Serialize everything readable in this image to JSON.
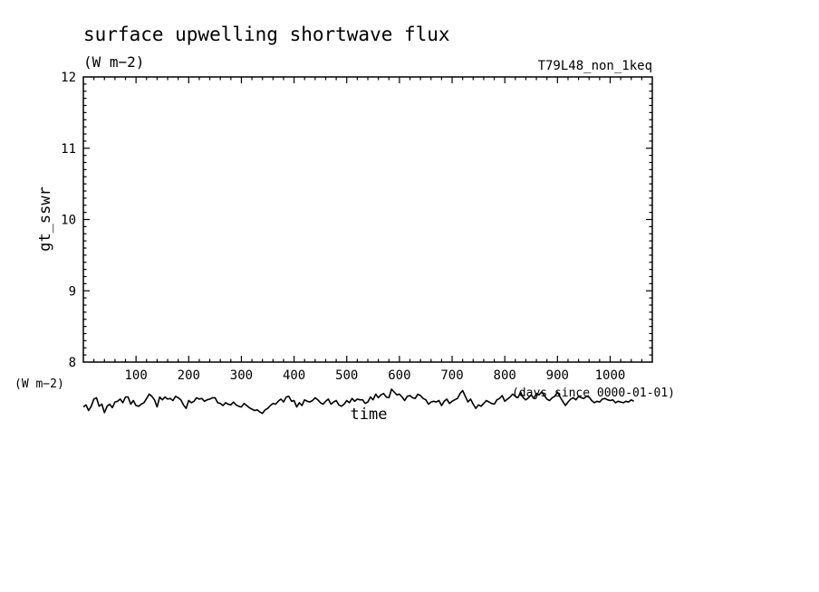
{
  "chart_data": {
    "type": "line",
    "title": "surface upwelling shortwave flux",
    "units": "(W m−2)",
    "run_label": "T79L48_non_1keq",
    "ylabel": "gt_sswr",
    "xlabel": "time",
    "x_units": "(days since 0000-01-01)",
    "y_units_corner": "(W m−2)",
    "xlim": [
      0,
      1080
    ],
    "ylim": [
      8,
      12
    ],
    "x_major_ticks": [
      100,
      200,
      300,
      400,
      500,
      600,
      700,
      800,
      900,
      1000
    ],
    "y_major_ticks": [
      8,
      9,
      10,
      11,
      12
    ],
    "grid": false,
    "series": [
      {
        "x_start": 0,
        "x_step": 5,
        "values": [
          7.37,
          7.4,
          7.32,
          7.38,
          7.48,
          7.5,
          7.38,
          7.41,
          7.29,
          7.38,
          7.41,
          7.36,
          7.44,
          7.45,
          7.48,
          7.43,
          7.51,
          7.51,
          7.41,
          7.46,
          7.39,
          7.38,
          7.41,
          7.43,
          7.49,
          7.55,
          7.52,
          7.47,
          7.37,
          7.51,
          7.47,
          7.51,
          7.48,
          7.49,
          7.46,
          7.52,
          7.5,
          7.47,
          7.4,
          7.35,
          7.46,
          7.43,
          7.45,
          7.5,
          7.48,
          7.49,
          7.45,
          7.47,
          7.48,
          7.5,
          7.5,
          7.43,
          7.42,
          7.39,
          7.43,
          7.41,
          7.4,
          7.44,
          7.4,
          7.38,
          7.37,
          7.42,
          7.39,
          7.36,
          7.34,
          7.32,
          7.33,
          7.3,
          7.28,
          7.33,
          7.35,
          7.39,
          7.42,
          7.41,
          7.45,
          7.48,
          7.44,
          7.51,
          7.52,
          7.45,
          7.46,
          7.37,
          7.43,
          7.39,
          7.47,
          7.45,
          7.44,
          7.46,
          7.5,
          7.47,
          7.43,
          7.41,
          7.45,
          7.48,
          7.41,
          7.44,
          7.46,
          7.4,
          7.38,
          7.41,
          7.46,
          7.43,
          7.49,
          7.45,
          7.48,
          7.47,
          7.47,
          7.42,
          7.44,
          7.51,
          7.47,
          7.55,
          7.5,
          7.54,
          7.56,
          7.51,
          7.5,
          7.62,
          7.58,
          7.54,
          7.55,
          7.51,
          7.46,
          7.52,
          7.53,
          7.5,
          7.49,
          7.55,
          7.53,
          7.49,
          7.47,
          7.41,
          7.44,
          7.45,
          7.44,
          7.46,
          7.39,
          7.45,
          7.48,
          7.42,
          7.45,
          7.47,
          7.49,
          7.56,
          7.6,
          7.52,
          7.44,
          7.48,
          7.41,
          7.35,
          7.4,
          7.38,
          7.42,
          7.46,
          7.44,
          7.42,
          7.41,
          7.47,
          7.49,
          7.53,
          7.45,
          7.48,
          7.51,
          7.55,
          7.52,
          7.5,
          7.58,
          7.5,
          7.47,
          7.5,
          7.54,
          7.49,
          7.56,
          7.54,
          7.58,
          7.53,
          7.48,
          7.46,
          7.5,
          7.52,
          7.58,
          7.51,
          7.45,
          7.39,
          7.44,
          7.48,
          7.5,
          7.47,
          7.52,
          7.5,
          7.49,
          7.52,
          7.51,
          7.46,
          7.43,
          7.45,
          7.44,
          7.48,
          7.49,
          7.47,
          7.46,
          7.47,
          7.43,
          7.45,
          7.44,
          7.43,
          7.45,
          7.44,
          7.47,
          7.45
        ]
      }
    ]
  }
}
